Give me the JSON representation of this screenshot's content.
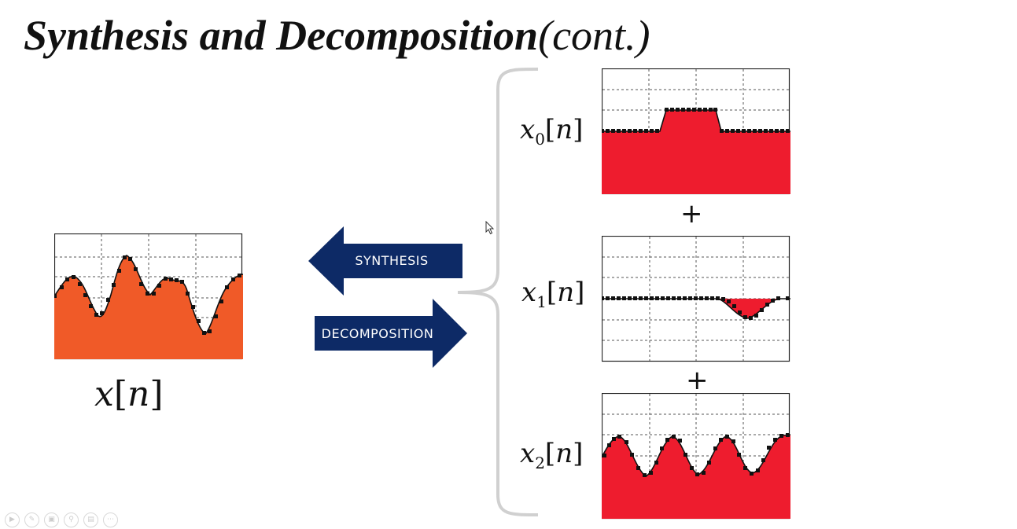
{
  "slide": {
    "title_main": "Synthesis and Decomposition",
    "title_suffix": "(cont.)"
  },
  "arrows": {
    "synthesis": "SYNTHESIS",
    "decomposition": "DECOMPOSITION",
    "color": "#0d2a66"
  },
  "signals": {
    "x": {
      "symbol": "x",
      "subscript": "",
      "index": "n",
      "fill": "#f05a28"
    },
    "x0": {
      "symbol": "x",
      "subscript": "0",
      "index": "n",
      "fill": "#ee1c2e"
    },
    "x1": {
      "symbol": "x",
      "subscript": "1",
      "index": "n",
      "fill": "#ee1c2e"
    },
    "x2": {
      "symbol": "x",
      "subscript": "2",
      "index": "n",
      "fill": "#ee1c2e"
    }
  },
  "operators": {
    "plus": "+"
  },
  "toolbar": {
    "icons": [
      "play-icon",
      "pen-icon",
      "slides-icon",
      "zoom-icon",
      "subtitle-icon",
      "more-icon"
    ]
  }
}
